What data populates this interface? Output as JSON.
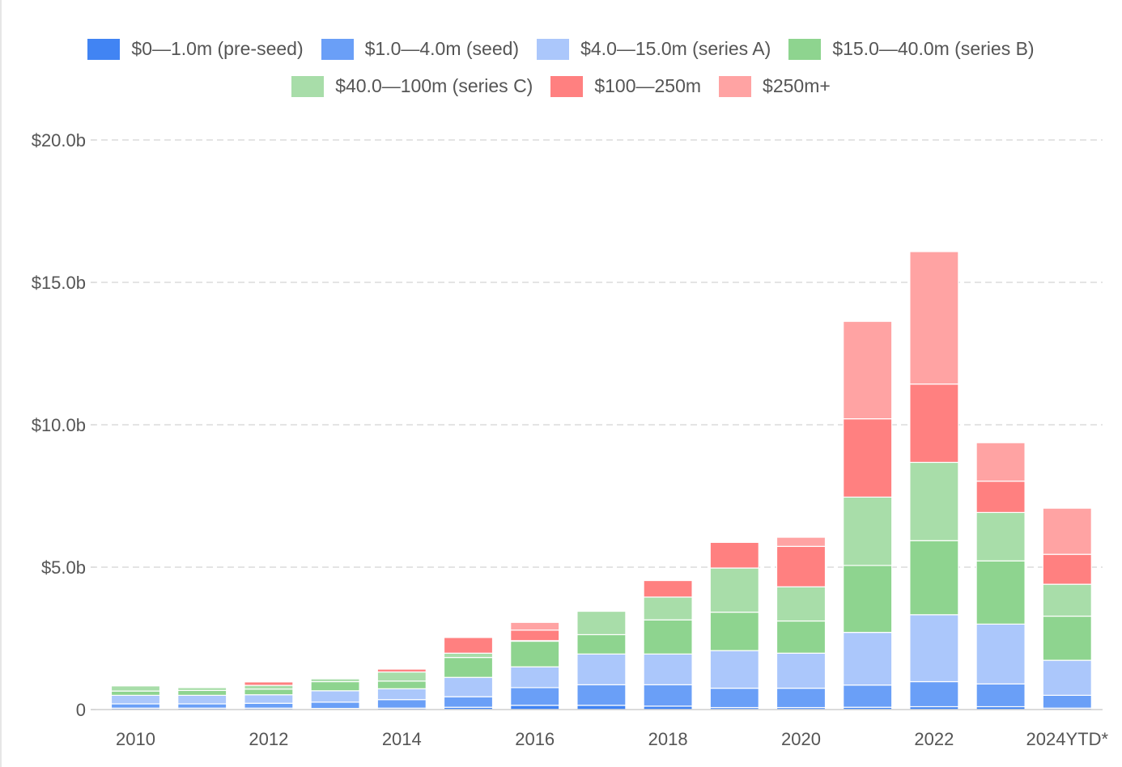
{
  "chart_data": {
    "type": "bar",
    "stacked": true,
    "title": "",
    "xlabel": "",
    "ylabel": "",
    "ylim": [
      0,
      20
    ],
    "y_unit": "b",
    "yticks": [
      "0",
      "$5.0b",
      "$10.0b",
      "$15.0b",
      "$20.0b"
    ],
    "ytick_values": [
      0,
      5,
      10,
      15,
      20
    ],
    "grid": true,
    "legend_position": "top-center",
    "categories": [
      "2010",
      "2011",
      "2012",
      "2013",
      "2014",
      "2015",
      "2016",
      "2017",
      "2018",
      "2019",
      "2020",
      "2021",
      "2022",
      "2023",
      "2024YTD*"
    ],
    "xtick_labels": [
      "2010",
      "",
      "2012",
      "",
      "2014",
      "",
      "2016",
      "",
      "2018",
      "",
      "2020",
      "",
      "2022",
      "",
      "2024YTD*"
    ],
    "series": [
      {
        "name": "$0—1.0m (pre-seed)",
        "color": "#4184f3",
        "values": [
          0.05,
          0.05,
          0.05,
          0.04,
          0.05,
          0.08,
          0.15,
          0.15,
          0.12,
          0.07,
          0.07,
          0.08,
          0.1,
          0.1,
          0.05
        ]
      },
      {
        "name": "$1.0—4.0m (seed)",
        "color": "#6a9ff7",
        "values": [
          0.15,
          0.15,
          0.17,
          0.22,
          0.3,
          0.37,
          0.62,
          0.72,
          0.75,
          0.68,
          0.68,
          0.78,
          0.88,
          0.8,
          0.45
        ]
      },
      {
        "name": "$4.0—15.0m (series A)",
        "color": "#abc7fb",
        "values": [
          0.3,
          0.3,
          0.3,
          0.4,
          0.38,
          0.68,
          0.73,
          1.08,
          1.08,
          1.32,
          1.23,
          1.85,
          2.35,
          2.1,
          1.23
        ]
      },
      {
        "name": "$15.0—40.0m (series B)",
        "color": "#8ed48f",
        "values": [
          0.15,
          0.17,
          0.2,
          0.32,
          0.27,
          0.7,
          0.9,
          0.68,
          1.2,
          1.35,
          1.13,
          2.35,
          2.6,
          2.22,
          1.55
        ]
      },
      {
        "name": "$40.0—100m (series C)",
        "color": "#a8dda9",
        "values": [
          0.18,
          0.1,
          0.13,
          0.1,
          0.32,
          0.15,
          0.02,
          0.82,
          0.8,
          1.55,
          1.2,
          2.4,
          2.75,
          1.7,
          1.12
        ]
      },
      {
        "name": "$100—250m",
        "color": "#ff8080",
        "values": [
          0.0,
          0.0,
          0.12,
          0.0,
          0.1,
          0.55,
          0.37,
          0.0,
          0.58,
          0.9,
          1.42,
          2.75,
          2.75,
          1.1,
          1.05
        ]
      },
      {
        "name": "$250m+",
        "color": "#ffa3a3",
        "values": [
          0.0,
          0.0,
          0.0,
          0.03,
          0.0,
          0.0,
          0.27,
          0.0,
          0.0,
          0.0,
          0.32,
          3.42,
          4.65,
          1.35,
          1.62
        ]
      }
    ]
  }
}
